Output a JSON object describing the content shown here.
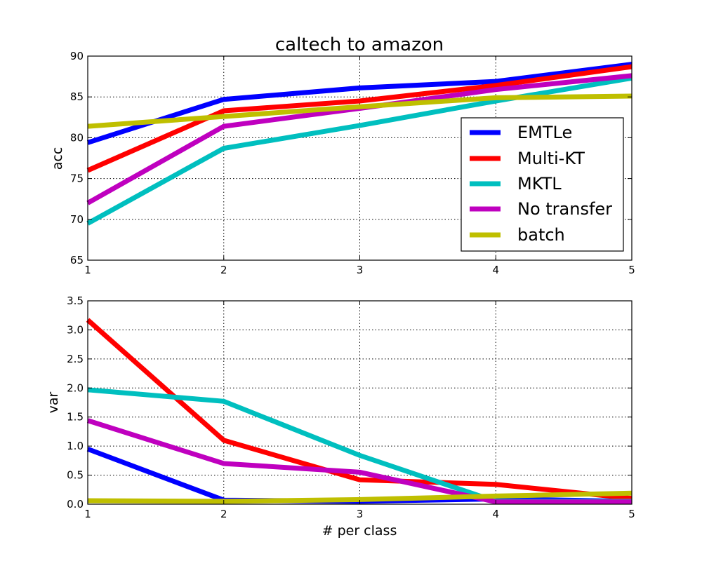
{
  "chart_data": [
    {
      "type": "line",
      "title": "caltech to amazon",
      "xlabel": "",
      "ylabel": "acc",
      "xlim": [
        1,
        5
      ],
      "ylim": [
        65,
        90
      ],
      "x": [
        1,
        2,
        3,
        4,
        5
      ],
      "xticks": [
        "1",
        "2",
        "3",
        "4",
        "5"
      ],
      "yticks": [
        "65",
        "70",
        "75",
        "80",
        "85",
        "90"
      ],
      "ytick_values": [
        65,
        70,
        75,
        80,
        85,
        90
      ],
      "grid": true,
      "legend": "lower-right",
      "series": [
        {
          "name": "EMTLe",
          "color": "#0000ff",
          "values": [
            79.4,
            84.7,
            86.1,
            86.9,
            89.0
          ]
        },
        {
          "name": "Multi-KT",
          "color": "#ff0000",
          "values": [
            76.0,
            83.3,
            84.5,
            86.4,
            88.7
          ]
        },
        {
          "name": "MKTL",
          "color": "#00bfbf",
          "values": [
            69.5,
            78.7,
            81.5,
            84.5,
            87.3
          ]
        },
        {
          "name": "No transfer",
          "color": "#bf00bf",
          "values": [
            72.0,
            81.4,
            83.6,
            85.9,
            87.6
          ]
        },
        {
          "name": "batch",
          "color": "#bfbf00",
          "values": [
            81.4,
            82.6,
            83.8,
            84.9,
            85.1
          ]
        }
      ]
    },
    {
      "type": "line",
      "title": "",
      "xlabel": "# per class",
      "ylabel": "var",
      "xlim": [
        1,
        5
      ],
      "ylim": [
        0.0,
        3.5
      ],
      "x": [
        1,
        2,
        3,
        4,
        5
      ],
      "xticks": [
        "1",
        "2",
        "3",
        "4",
        "5"
      ],
      "yticks": [
        "0.0",
        "0.5",
        "1.0",
        "1.5",
        "2.0",
        "2.5",
        "3.0",
        "3.5"
      ],
      "ytick_values": [
        0.0,
        0.5,
        1.0,
        1.5,
        2.0,
        2.5,
        3.0,
        3.5
      ],
      "grid": true,
      "series": [
        {
          "name": "EMTLe",
          "color": "#0000ff",
          "values": [
            0.95,
            0.07,
            0.05,
            0.09,
            0.05
          ]
        },
        {
          "name": "Multi-KT",
          "color": "#ff0000",
          "values": [
            3.17,
            1.1,
            0.42,
            0.34,
            0.1
          ]
        },
        {
          "name": "MKTL",
          "color": "#00bfbf",
          "values": [
            1.97,
            1.77,
            0.84,
            0.05,
            0.05
          ]
        },
        {
          "name": "No transfer",
          "color": "#bf00bf",
          "values": [
            1.44,
            0.7,
            0.55,
            0.04,
            0.04
          ]
        },
        {
          "name": "batch",
          "color": "#bfbf00",
          "values": [
            0.06,
            0.05,
            0.08,
            0.14,
            0.19
          ]
        }
      ]
    }
  ]
}
